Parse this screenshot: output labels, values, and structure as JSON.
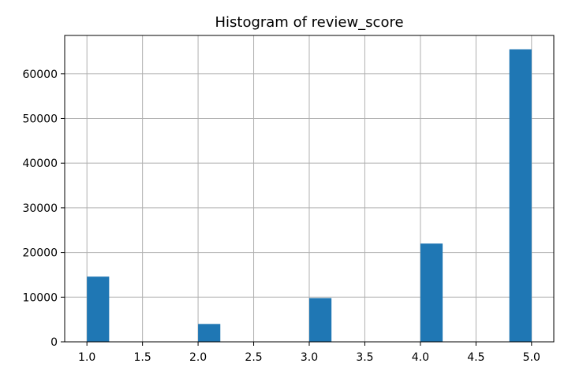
{
  "chart_data": {
    "type": "bar",
    "title": "Histogram of review_score",
    "xlabel": "",
    "ylabel": "",
    "bins": [
      {
        "x0": 1.0,
        "x1": 1.2,
        "count": 14600
      },
      {
        "x0": 2.0,
        "x1": 2.2,
        "count": 4000
      },
      {
        "x0": 3.0,
        "x1": 3.2,
        "count": 9800
      },
      {
        "x0": 4.0,
        "x1": 4.2,
        "count": 22000
      },
      {
        "x0": 4.8,
        "x1": 5.0,
        "count": 65500
      }
    ],
    "xlim": [
      0.8,
      5.2
    ],
    "ylim": [
      0,
      68600
    ],
    "xticks": [
      1.0,
      1.5,
      2.0,
      2.5,
      3.0,
      3.5,
      4.0,
      4.5,
      5.0
    ],
    "xtick_labels": [
      "1.0",
      "1.5",
      "2.0",
      "2.5",
      "3.0",
      "3.5",
      "4.0",
      "4.5",
      "5.0"
    ],
    "yticks": [
      0,
      10000,
      20000,
      30000,
      40000,
      50000,
      60000
    ],
    "ytick_labels": [
      "0",
      "10000",
      "20000",
      "30000",
      "40000",
      "50000",
      "60000"
    ],
    "grid": true,
    "legend": "none",
    "colors": {
      "bar": "#1f77b4",
      "grid": "#b0b0b0",
      "axis": "#000000"
    }
  }
}
